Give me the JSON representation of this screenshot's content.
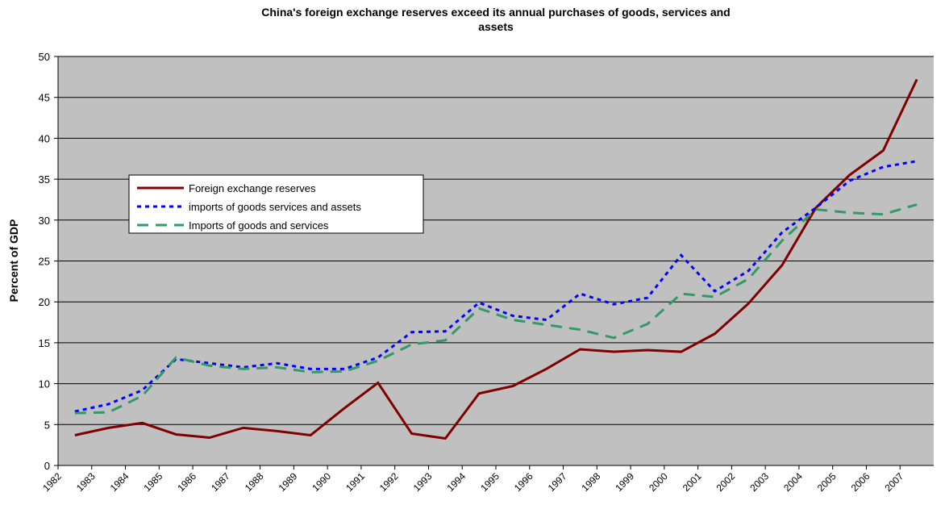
{
  "chart_data": {
    "type": "line",
    "title": [
      "China's foreign exchange reserves exceed its annual purchases of goods, services and",
      "assets"
    ],
    "y_label": "Percent of GDP",
    "categories": [
      "1982",
      "1983",
      "1984",
      "1985",
      "1986",
      "1987",
      "1988",
      "1989",
      "1990",
      "1991",
      "1992",
      "1993",
      "1994",
      "1995",
      "1996",
      "1997",
      "1998",
      "1999",
      "2000",
      "2001",
      "2002",
      "2003",
      "2004",
      "2005",
      "2006",
      "2007"
    ],
    "series": [
      {
        "name": "Foreign exchange reserves",
        "color": "#800000",
        "dash": "solid",
        "values": [
          3.7,
          4.6,
          5.2,
          3.8,
          3.4,
          4.6,
          4.2,
          3.7,
          7.0,
          10.1,
          3.9,
          3.3,
          8.8,
          9.7,
          11.8,
          14.2,
          13.9,
          14.1,
          13.9,
          16.1,
          19.8,
          24.5,
          31.5,
          35.5,
          38.5,
          47.2
        ]
      },
      {
        "name": "imports of goods services and assets",
        "color": "#0000ff",
        "dash": "dot",
        "values": [
          6.6,
          7.5,
          9.2,
          13.0,
          12.5,
          12.0,
          12.5,
          11.8,
          11.8,
          13.2,
          16.3,
          16.4,
          19.9,
          18.3,
          17.8,
          21.0,
          19.7,
          20.5,
          25.7,
          21.3,
          23.8,
          28.5,
          31.5,
          34.8,
          36.5,
          37.2
        ]
      },
      {
        "name": "Imports of goods and services",
        "color": "#339966",
        "dash": "dash",
        "values": [
          6.4,
          6.5,
          8.5,
          13.2,
          12.2,
          11.8,
          12.0,
          11.4,
          11.5,
          12.8,
          14.8,
          15.3,
          19.2,
          17.8,
          17.2,
          16.6,
          15.6,
          17.3,
          21.0,
          20.6,
          22.8,
          27.5,
          31.3,
          30.9,
          30.7,
          31.9
        ]
      }
    ],
    "ylim": [
      0,
      50
    ],
    "yticks": [
      0,
      5,
      10,
      15,
      20,
      25,
      30,
      35,
      40,
      45,
      50
    ],
    "grid": true,
    "background": "#c0c0c0"
  }
}
